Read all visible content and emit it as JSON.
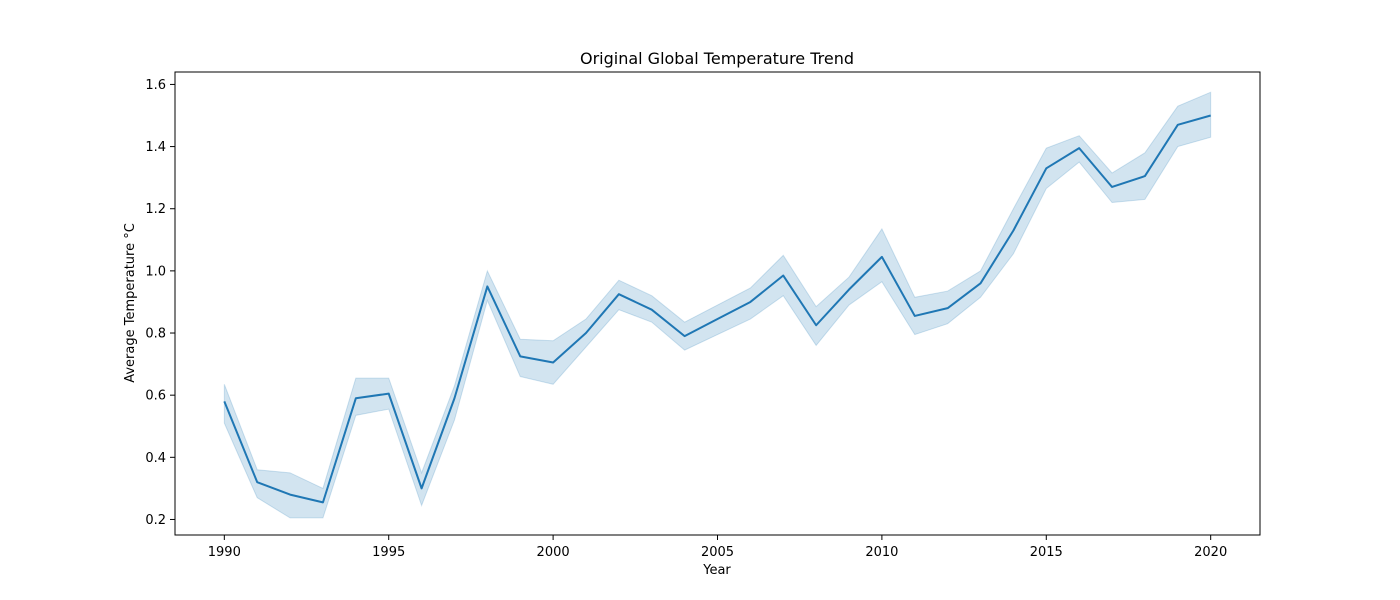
{
  "chart_data": {
    "type": "line",
    "title": "Original Global Temperature Trend",
    "xlabel": "Year",
    "ylabel": "Average Temperature °C",
    "xlim": [
      1988.5,
      2021.5
    ],
    "ylim": [
      0.15,
      1.64
    ],
    "xticks": [
      1990,
      1995,
      2000,
      2005,
      2010,
      2015,
      2020
    ],
    "yticks": [
      0.2,
      0.4,
      0.6,
      0.8,
      1.0,
      1.2,
      1.4,
      1.6
    ],
    "ytick_labels": [
      "0.2",
      "0.4",
      "0.6",
      "0.8",
      "1.0",
      "1.2",
      "1.4",
      "1.6"
    ],
    "grid": false,
    "colors": {
      "line": "#1f77b4",
      "band": "#1f77b4"
    },
    "x": [
      1990,
      1991,
      1992,
      1993,
      1994,
      1995,
      1996,
      1997,
      1998,
      1999,
      2000,
      2001,
      2002,
      2003,
      2004,
      2005,
      2006,
      2007,
      2008,
      2009,
      2010,
      2011,
      2012,
      2013,
      2014,
      2015,
      2016,
      2017,
      2018,
      2019,
      2020
    ],
    "y": [
      0.58,
      0.32,
      0.28,
      0.255,
      0.59,
      0.605,
      0.3,
      0.59,
      0.95,
      0.725,
      0.705,
      0.8,
      0.925,
      0.875,
      0.79,
      0.845,
      0.9,
      0.985,
      0.825,
      0.94,
      1.045,
      0.855,
      0.88,
      0.96,
      1.13,
      1.33,
      1.395,
      1.27,
      1.305,
      1.47,
      1.5
    ],
    "ci_lower": [
      0.51,
      0.27,
      0.205,
      0.205,
      0.535,
      0.555,
      0.245,
      0.52,
      0.905,
      0.66,
      0.635,
      0.755,
      0.875,
      0.835,
      0.745,
      0.795,
      0.845,
      0.92,
      0.76,
      0.89,
      0.965,
      0.795,
      0.83,
      0.915,
      1.055,
      1.265,
      1.35,
      1.22,
      1.23,
      1.4,
      1.43
    ],
    "ci_upper": [
      0.635,
      0.36,
      0.35,
      0.3,
      0.655,
      0.655,
      0.35,
      0.63,
      1.0,
      0.78,
      0.775,
      0.845,
      0.97,
      0.92,
      0.835,
      0.89,
      0.945,
      1.05,
      0.885,
      0.98,
      1.135,
      0.915,
      0.935,
      1.0,
      1.2,
      1.395,
      1.435,
      1.315,
      1.38,
      1.53,
      1.575
    ]
  }
}
